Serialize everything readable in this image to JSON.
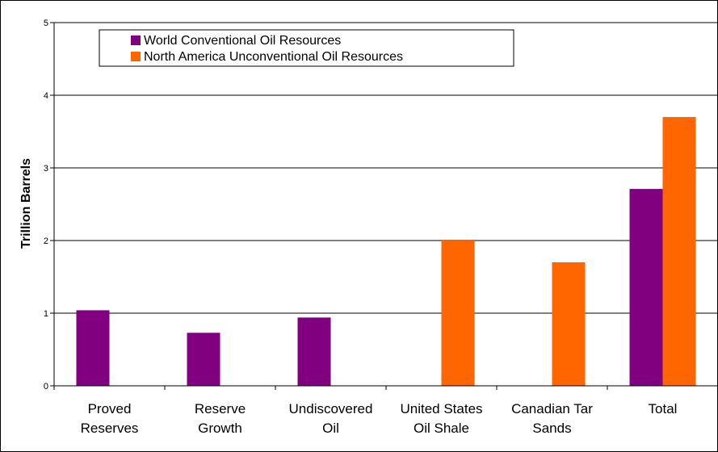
{
  "chart_data": {
    "type": "bar",
    "title": "",
    "xlabel": "",
    "ylabel": "Trillion Barrels",
    "ylim": [
      0,
      5
    ],
    "yticks": [
      0,
      1,
      2,
      3,
      4,
      5
    ],
    "grid": true,
    "legend_position": "top-left",
    "categories": [
      [
        "Proved",
        "Reserves"
      ],
      [
        "Reserve",
        "Growth"
      ],
      [
        "Undiscovered",
        "Oil"
      ],
      [
        "United States",
        "Oil Shale"
      ],
      [
        "Canadian Tar",
        "Sands"
      ],
      [
        "Total"
      ]
    ],
    "series": [
      {
        "name": "World Conventional Oil Resources",
        "color": "#800080",
        "values": [
          1.04,
          0.73,
          0.94,
          null,
          null,
          2.71
        ]
      },
      {
        "name": "North America Unconventional Oil Resources",
        "color": "#FF6600",
        "values": [
          null,
          null,
          null,
          2.0,
          1.7,
          3.7
        ]
      }
    ]
  }
}
